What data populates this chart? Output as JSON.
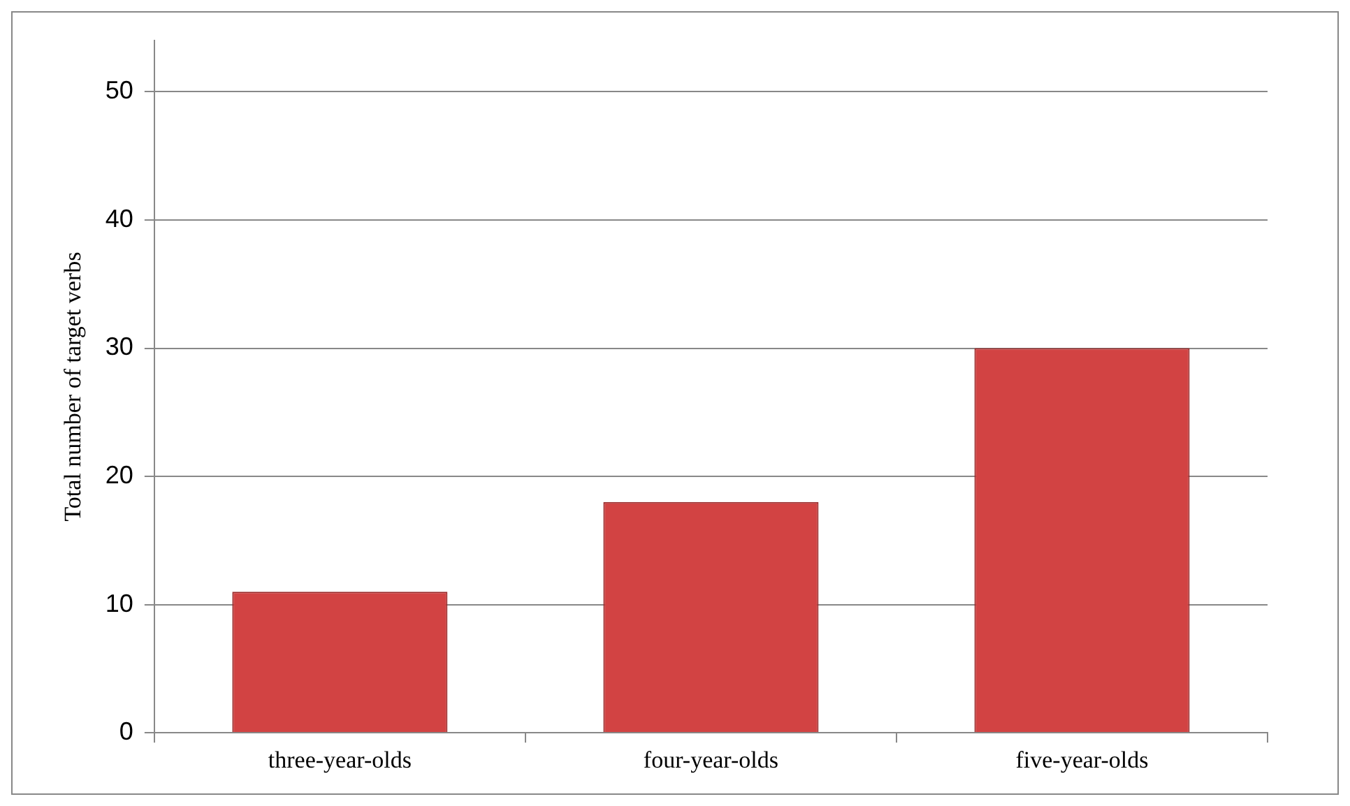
{
  "chart_data": {
    "type": "bar",
    "ylabel": "Total number of target verbs",
    "categories": [
      "three-year-olds",
      "four-year-olds",
      "five-year-olds"
    ],
    "values": [
      11,
      18,
      30
    ],
    "color": "#d24343",
    "ylim": [
      0,
      54
    ],
    "yticks": [
      0,
      10,
      20,
      30,
      40,
      50
    ],
    "grid": "y"
  }
}
